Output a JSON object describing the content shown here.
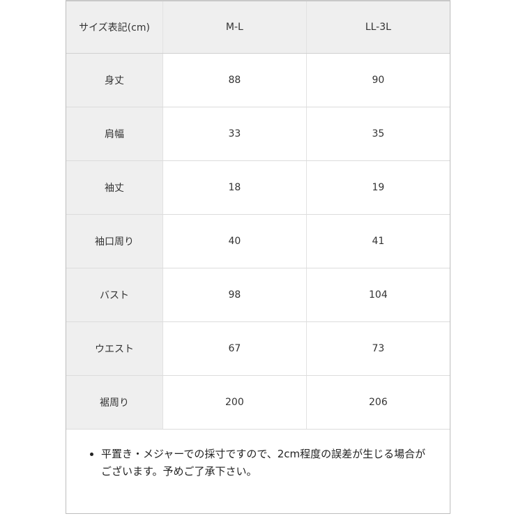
{
  "table": {
    "headers": [
      "サイズ表記(cm)",
      "M-L",
      "LL-3L"
    ],
    "rows": [
      [
        "身丈",
        "88",
        "90"
      ],
      [
        "肩幅",
        "33",
        "35"
      ],
      [
        "袖丈",
        "18",
        "19"
      ],
      [
        "袖口周り",
        "40",
        "41"
      ],
      [
        "バスト",
        "98",
        "104"
      ],
      [
        "ウエスト",
        "67",
        "73"
      ],
      [
        "裾周り",
        "200",
        "206"
      ]
    ]
  },
  "note": "平置き・メジャーでの採寸ですので、2cm程度の誤差が生じる場合がございます。予めご了承下さい。",
  "colors": {
    "header_bg": "#efefef",
    "border": "#bdbdbd"
  }
}
